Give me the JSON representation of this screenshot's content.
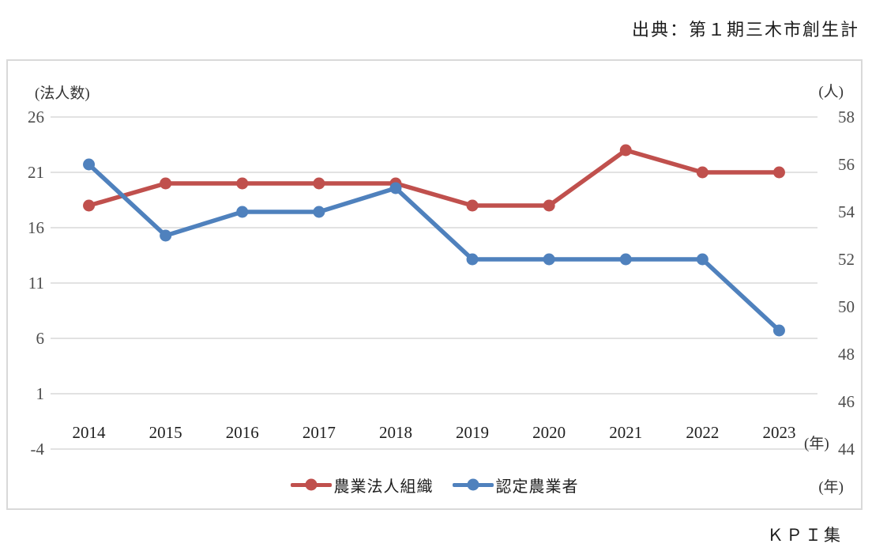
{
  "source_note": "出典：第１期三木市創生計",
  "kpi_note": "ＫＰＩ集",
  "chart_data": {
    "type": "line",
    "title": "",
    "categories": [
      "2014",
      "2015",
      "2016",
      "2017",
      "2018",
      "2019",
      "2020",
      "2021",
      "2022",
      "2023"
    ],
    "series": [
      {
        "name": "農業法人組織",
        "axis": "left",
        "color": "#c0504d",
        "values": [
          18,
          20,
          20,
          20,
          20,
          18,
          18,
          23,
          21,
          21
        ]
      },
      {
        "name": "認定農業者",
        "axis": "right",
        "color": "#4f81bd",
        "values": [
          56,
          53,
          54,
          54,
          55,
          52,
          52,
          52,
          52,
          49
        ]
      }
    ],
    "left_axis": {
      "unit": "(法人数)",
      "min": -4,
      "max": 26,
      "tick_step": 5,
      "ticks": [
        26,
        21,
        16,
        11,
        6,
        1,
        -4
      ]
    },
    "right_axis": {
      "unit": "(人)",
      "min": 44,
      "max": 58,
      "tick_step": 2,
      "ticks": [
        58,
        56,
        54,
        52,
        50,
        48,
        46,
        44
      ]
    },
    "x_axis": {
      "unit": "(年)"
    },
    "grid": "horizontal-left-ticks-only",
    "grid_color": "#d9d9d9",
    "tick_color": "#4d4d4d",
    "legend_position": "bottom"
  }
}
